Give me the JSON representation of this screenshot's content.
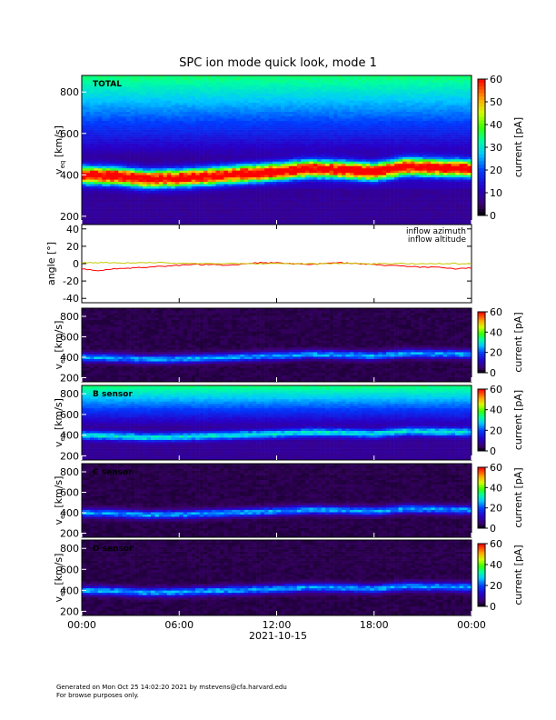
{
  "chart_data": {
    "type": "heatmap",
    "title": "SPC ion mode quick look, mode 1",
    "x_ticks": [
      "00:00",
      "06:00",
      "12:00",
      "18:00",
      "00:00"
    ],
    "x_range_hours": [
      0,
      24
    ],
    "date_label": "2021-10-15",
    "spectrogram_panels": [
      {
        "label": "TOTAL",
        "ylabel": "v",
        "ylabel_sub": "eq",
        "yunit": "[km/s]",
        "ylim": [
          160,
          880
        ],
        "y_ticks": [
          200,
          400,
          600,
          800
        ],
        "colorbar_label": "current [pA]",
        "colorbar_range": [
          0,
          60
        ],
        "colorbar_ticks": [
          0,
          10,
          20,
          30,
          40,
          50,
          60
        ],
        "background_band": true,
        "peak_level": 60
      },
      {
        "label": "",
        "ylabel": "v",
        "ylabel_sub": "eq",
        "yunit": "[km/s]",
        "ylim": [
          160,
          880
        ],
        "y_ticks": [
          200,
          400,
          600,
          800
        ],
        "colorbar_label": "current [pA]",
        "colorbar_range": [
          0,
          60
        ],
        "colorbar_ticks": [
          0,
          20,
          40,
          60
        ],
        "background_band": false,
        "peak_level": 22
      },
      {
        "label": "B sensor",
        "ylabel": "v",
        "ylabel_sub": "eq",
        "yunit": "[km/s]",
        "ylim": [
          160,
          880
        ],
        "y_ticks": [
          200,
          400,
          600,
          800
        ],
        "colorbar_label": "current [pA]",
        "colorbar_range": [
          0,
          60
        ],
        "colorbar_ticks": [
          0,
          20,
          40,
          60
        ],
        "background_band": true,
        "peak_level": 22
      },
      {
        "label": "C sensor",
        "ylabel": "v",
        "ylabel_sub": "eq",
        "yunit": "[km/s]",
        "ylim": [
          160,
          880
        ],
        "y_ticks": [
          200,
          400,
          600,
          800
        ],
        "colorbar_label": "current [pA]",
        "colorbar_range": [
          0,
          60
        ],
        "colorbar_ticks": [
          0,
          20,
          40,
          60
        ],
        "background_band": false,
        "peak_level": 22
      },
      {
        "label": "D sensor",
        "ylabel": "v",
        "ylabel_sub": "eq",
        "yunit": "[km/s]",
        "ylim": [
          160,
          880
        ],
        "y_ticks": [
          200,
          400,
          600,
          800
        ],
        "colorbar_label": "current [pA]",
        "colorbar_range": [
          0,
          60
        ],
        "colorbar_ticks": [
          0,
          20,
          40,
          60
        ],
        "background_band": false,
        "peak_level": 22
      }
    ],
    "angle_panel": {
      "ylabel": "angle [°]",
      "ylim": [
        -45,
        45
      ],
      "y_ticks": [
        -40,
        -20,
        0,
        20,
        40
      ],
      "legend_placement": "top-right",
      "series": [
        {
          "name": "inflow azimuth",
          "color": "#ff0000",
          "x": [
            0,
            1,
            2,
            3,
            4,
            5,
            6,
            7,
            8,
            9,
            10,
            11,
            12,
            13,
            14,
            15,
            16,
            17,
            18,
            19,
            20,
            21,
            22,
            23,
            24
          ],
          "y": [
            -6,
            -8,
            -6,
            -5,
            -4,
            -3,
            -2,
            -1,
            -1,
            -2,
            0,
            1,
            1,
            0,
            -1,
            0,
            1,
            0,
            -1,
            -2,
            -3,
            -4,
            -4,
            -6,
            -5
          ]
        },
        {
          "name": "inflow altitude",
          "color": "#c8c800",
          "x": [
            0,
            1,
            2,
            3,
            4,
            5,
            6,
            7,
            8,
            9,
            10,
            11,
            12,
            13,
            14,
            15,
            16,
            17,
            18,
            19,
            20,
            21,
            22,
            23,
            24
          ],
          "y": [
            1,
            1,
            1,
            1,
            1,
            1,
            0,
            0,
            0,
            0,
            0,
            0,
            0,
            0,
            0,
            0,
            0,
            0,
            0,
            0,
            0,
            0,
            0,
            0,
            0
          ]
        }
      ]
    },
    "proton_core_speed_km_s": {
      "x_hours": [
        0,
        2,
        4,
        6,
        8,
        10,
        12,
        14,
        16,
        18,
        20,
        22,
        24
      ],
      "v": [
        400,
        395,
        380,
        385,
        395,
        405,
        415,
        430,
        425,
        415,
        440,
        435,
        430
      ]
    },
    "footer_lines": [
      "Generated on Mon Oct 25 14:02:20 2021 by mstevens@cfa.harvard.edu",
      "For browse purposes only."
    ]
  }
}
